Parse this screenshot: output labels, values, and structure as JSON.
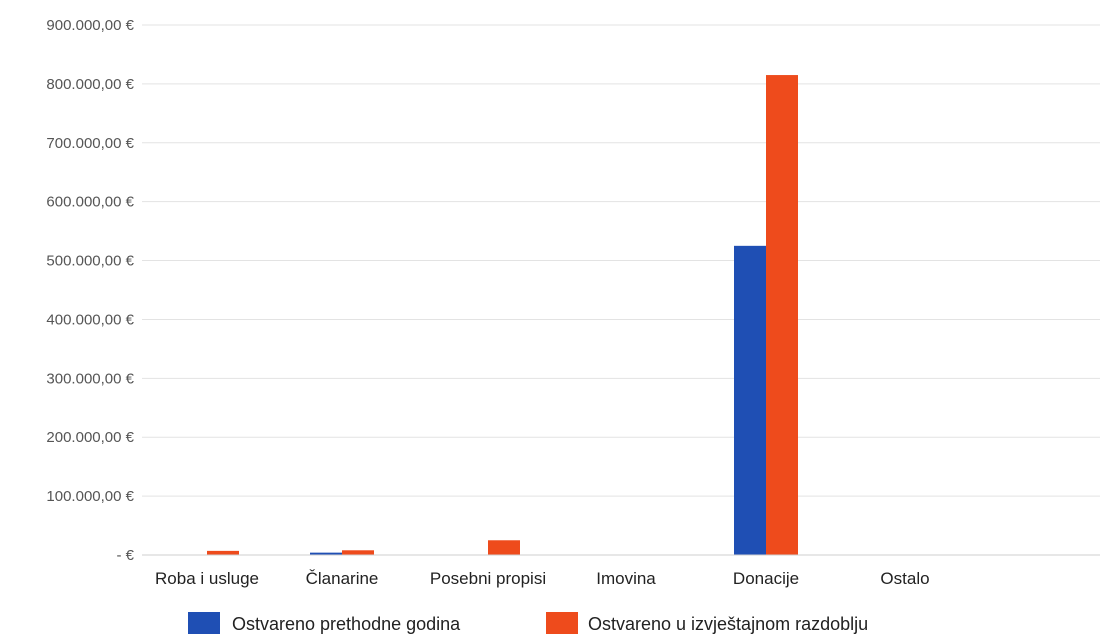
{
  "chart_data": {
    "type": "bar",
    "categories": [
      "Roba i usluge",
      "Članarine",
      "Posebni propisi",
      "Imovina",
      "Donacije",
      "Ostalo"
    ],
    "series": [
      {
        "name": "Ostvareno prethodne godina",
        "color": "#1f4fb4",
        "values": [
          0,
          4000,
          0,
          0,
          525000,
          0
        ]
      },
      {
        "name": "Ostvareno u izvještajnom razdoblju",
        "color": "#ee4b1c",
        "values": [
          7000,
          8000,
          25000,
          0,
          815000,
          0
        ]
      }
    ],
    "y_ticks": [
      {
        "value": 0,
        "label": "-  €"
      },
      {
        "value": 100000,
        "label": "100.000,00 €"
      },
      {
        "value": 200000,
        "label": "200.000,00 €"
      },
      {
        "value": 300000,
        "label": "300.000,00 €"
      },
      {
        "value": 400000,
        "label": "400.000,00 €"
      },
      {
        "value": 500000,
        "label": "500.000,00 €"
      },
      {
        "value": 600000,
        "label": "600.000,00 €"
      },
      {
        "value": 700000,
        "label": "700.000,00 €"
      },
      {
        "value": 800000,
        "label": "800.000,00 €"
      },
      {
        "value": 900000,
        "label": "900.000,00 €"
      }
    ],
    "ylim": [
      0,
      900000
    ],
    "grid": true,
    "legend_position": "bottom"
  }
}
